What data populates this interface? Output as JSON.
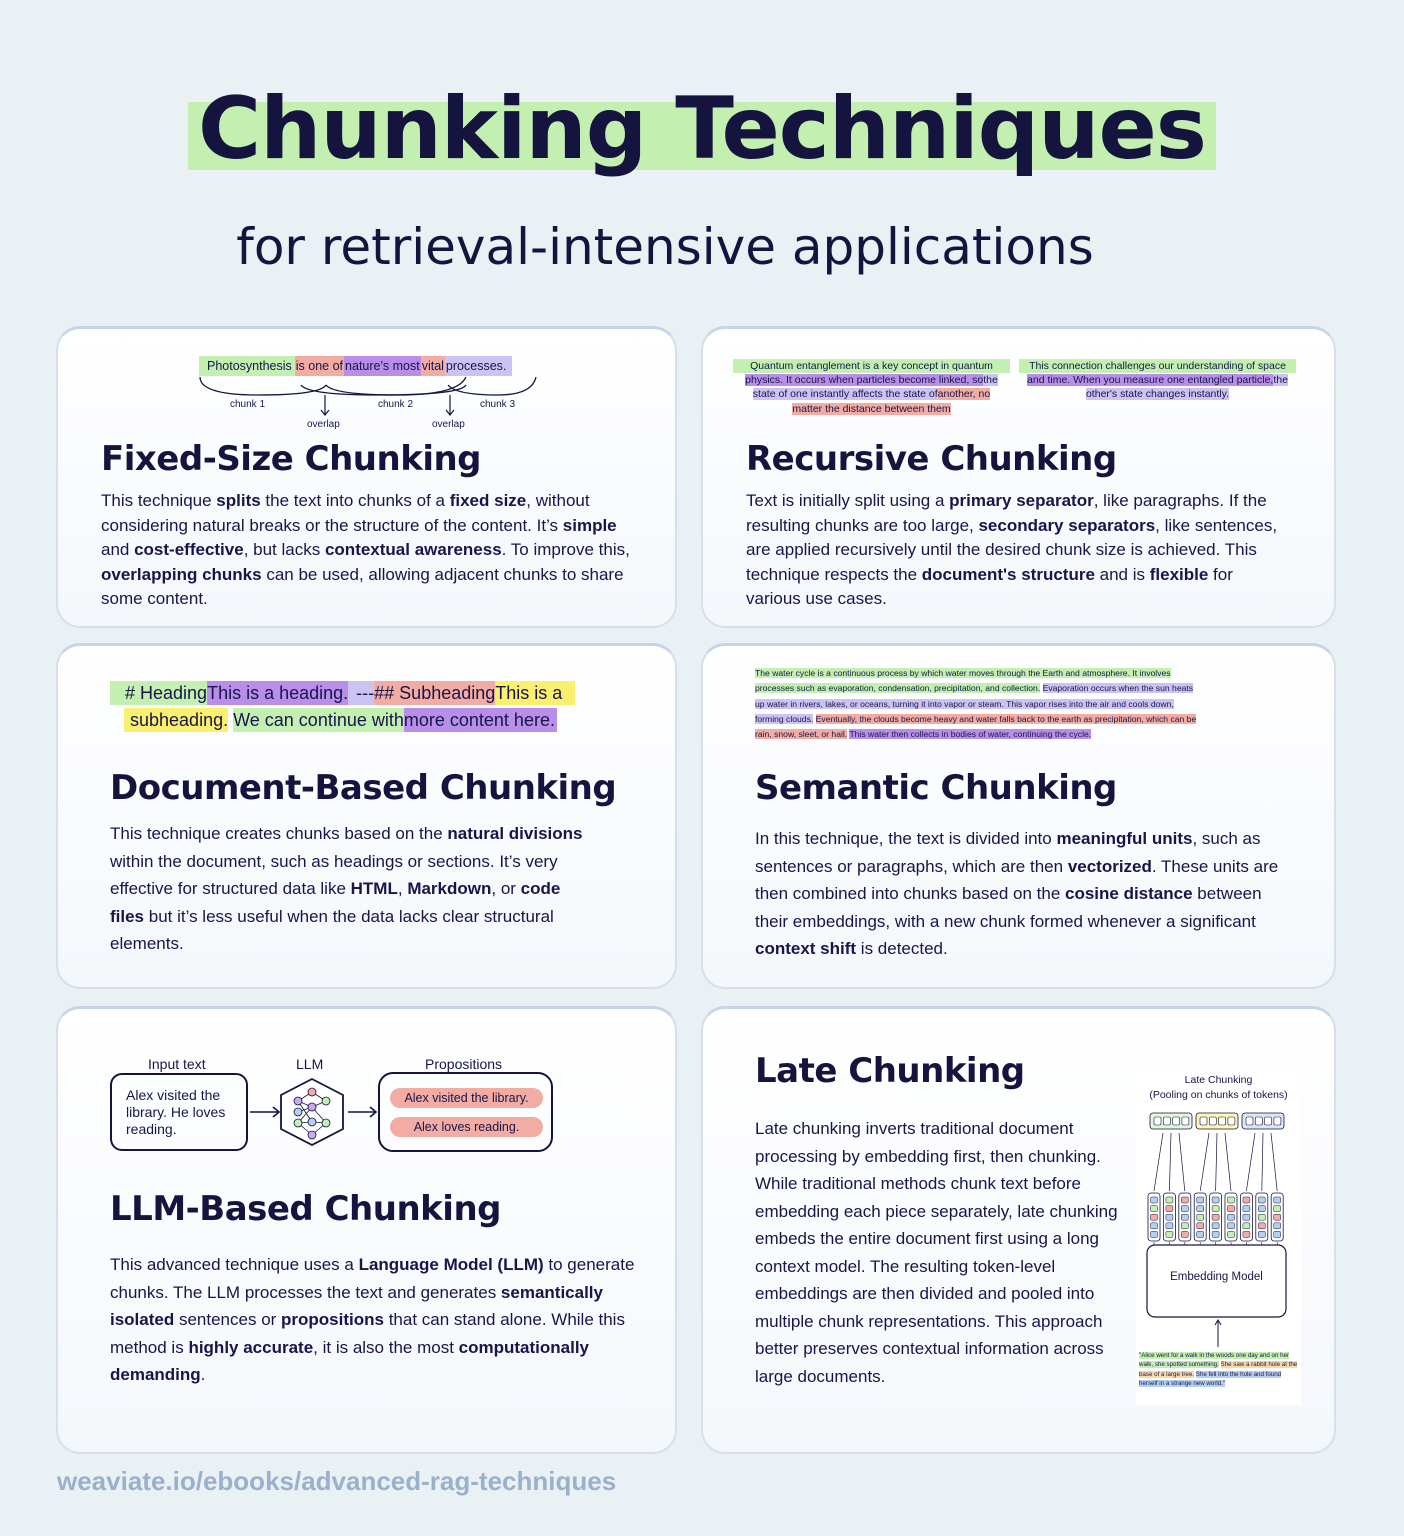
{
  "header": {
    "title": "Chunking Techniques",
    "subtitle": "for retrieval-intensive applications"
  },
  "fixed": {
    "title": "Fixed-Size Chunking",
    "example": {
      "segments": [
        "Photosynthesis",
        "is one of",
        "nature's most",
        "vital",
        "processes."
      ],
      "chunk1": "chunk 1",
      "chunk2": "chunk 2",
      "chunk3": "chunk 3",
      "overlap": "overlap"
    },
    "body": "This technique <b>splits</b> the text into chunks of a <b>fixed size</b>, without considering natural breaks or the structure of the content. It’s <b>simple</b> and <b>cost-effective</b>, but lacks <b>contextual awareness</b>. To improve this, <b>overlapping chunks</b> can be used, allowing adjacent chunks to share some content."
  },
  "recursive": {
    "title": "Recursive Chunking",
    "example_left": [
      "Quantum entanglement is a key concept in quantum",
      "physics. It occurs when particles become linked, so",
      "the",
      "state of one instantly affects the state of",
      "another, no",
      "matter the distance between them"
    ],
    "example_right": [
      "This connection challenges our understanding of space",
      "and time. When you measure one entangled particle,",
      "the",
      "other's state changes instantly."
    ],
    "body": "Text is initially split using a <b>primary separator</b>, like paragraphs. If the resulting chunks are too large, <b>secondary separators</b>, like sentences, are applied recursively until the desired chunk size is achieved. This technique respects the <b>document's structure</b> and is <b>flexible</b> for various use cases."
  },
  "document": {
    "title": "Document-Based Chunking",
    "example": {
      "s1": "# Heading",
      "s2": "This is a heading.",
      "s3": "---",
      "s4": "## Subheading",
      "s5": "This is a",
      "s6": "subheading.",
      "s7": "We can continue with",
      "s8": "more content here."
    },
    "body": "This technique creates chunks based on the <b>natural divisions</b> within the document, such as headings or sections. It’s very effective for structured data like <b>HTML</b>, <b>Markdown</b>, or <b>code files</b> but it’s less useful when the data lacks clear structural elements."
  },
  "semantic": {
    "title": "Semantic Chunking",
    "example": {
      "s1": "The water cycle is a continuous process by which water moves through the Earth and atmosphere. It involves processes such as evaporation, condensation, precipitation, and collection.",
      "s2": "Evaporation occurs when the sun heats up water in rivers, lakes, or oceans, turning it into vapor or steam. This vapor rises into the air and cools down, forming clouds.",
      "s3": "Eventually, the clouds become heavy and water falls back to the earth as precipitation, which can be rain, snow, sleet, or hail.",
      "s4": "This water then collects in bodies of water, continuing the cycle."
    },
    "body": "In this technique, the text is divided into <b>meaningful units</b>, such as sentences or paragraphs, which are then <b>vectorized</b>. These units are then combined into chunks based on the <b>cosine distance</b> between their embeddings, with a new chunk formed whenever a significant <b>context shift</b> is detected."
  },
  "llm": {
    "title": "LLM-Based Chunking",
    "diagram": {
      "input_label": "Input text",
      "llm_label": "LLM",
      "props_label": "Propositions",
      "input_text": "Alex visited the library. He loves reading.",
      "prop1": "Alex visited the library.",
      "prop2": "Alex loves reading."
    },
    "body": "This advanced technique uses a <b>Language Model (LLM)</b> to generate chunks. The LLM processes the text and generates <b>semantically isolated</b> sentences or <b>propositions</b> that can stand alone. While this method is <b>highly accurate</b>, it is also the most <b>computationally demanding</b>."
  },
  "late": {
    "title": "Late Chunking",
    "diagram": {
      "title": "Late Chunking",
      "subtitle": "(Pooling on chunks of tokens)",
      "model": "Embedding Model",
      "text_s1": "\"Alice went for a walk in the woods one day and on her walk, she spotted something.",
      "text_s2": "She saw a rabbit hole at the base of a large tree.",
      "text_s3": "She fell into the hole and found herself in a strange new world.\""
    },
    "body": "Late chunking inverts traditional document processing by embedding first, then chunking. While traditional methods chunk text before embedding each piece separately, late chunking embeds the entire document first using a long context model. The resulting token-level embeddings are then divided and pooled into multiple chunk representations. This approach better preserves contextual information across large documents."
  },
  "footer": {
    "url": "weaviate.io/ebooks/advanced-rag-techniques"
  },
  "colors": {
    "background": "#eaf1f5",
    "navy": "#14143f",
    "green": "#c3efb1",
    "salmon": "#f2aca4",
    "purple": "#b98ee9",
    "lavender": "#cdc3f3",
    "yellow": "#fbef6f",
    "blue": "#b5cfee",
    "footer": "#9bb0cb"
  }
}
